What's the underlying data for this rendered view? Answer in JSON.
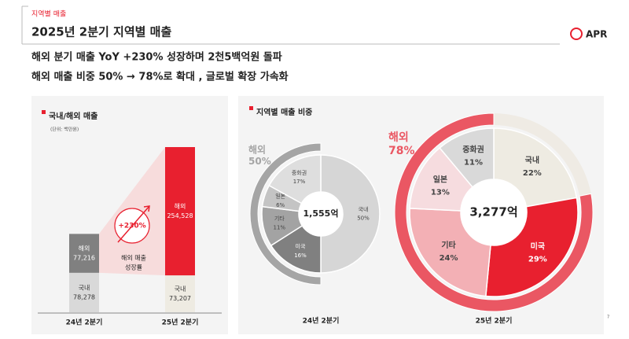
{
  "header": {
    "section": "지역별 매출",
    "title": "2025년 2분기 지역별 매출",
    "logo": "APR"
  },
  "headlines": [
    "해외 분기 매출 YoY +230% 성장하며 2천5백억원 돌파",
    "해외 매출 비중 50% → 78%로 확대 , 글로벌 확장 가속화"
  ],
  "share_panel": {
    "title": "지역별 매출 비중"
  },
  "page_number": "7",
  "chart_data": [
    {
      "type": "stacked-bar",
      "title": "국내/해외 매출",
      "subtitle": "(단위: 백만원)",
      "categories": [
        "24년 2분기",
        "25년 2분기"
      ],
      "series": [
        {
          "name": "국내",
          "colors": [
            "#d9d9d9",
            "#eeebe2"
          ],
          "values": [
            78278,
            73207
          ],
          "value_labels": [
            "78,278",
            "73,207"
          ]
        },
        {
          "name": "해외",
          "colors": [
            "#808080",
            "#e8202f"
          ],
          "values": [
            77216,
            254528
          ],
          "value_labels": [
            "77,216",
            "254,528"
          ]
        }
      ],
      "annotation": "+230%",
      "annotation_caption": [
        "해외 매출",
        "성장률"
      ]
    },
    {
      "type": "donut",
      "caption": "24년 2분기",
      "total": "1,555억",
      "categories": [
        "국내",
        "미국",
        "기타",
        "일본",
        "중화권"
      ],
      "values": [
        50,
        16,
        11,
        6,
        17
      ],
      "value_labels": [
        "50%",
        "16%",
        "11%",
        "6%",
        "17%"
      ],
      "colors": [
        "#d6d6d6",
        "#808080",
        "#a3a3a3",
        "#c4c4c4",
        "#dedede"
      ],
      "ring": {
        "name": "해외",
        "value": 50,
        "value_label": "50%",
        "color": "#a5a5a5"
      }
    },
    {
      "type": "donut",
      "caption": "25년 2분기",
      "total": "3,277억",
      "categories": [
        "국내",
        "미국",
        "기타",
        "일본",
        "중화권"
      ],
      "values": [
        22,
        29,
        24,
        13,
        11
      ],
      "value_labels": [
        "22%",
        "29%",
        "24%",
        "13%",
        "11%"
      ],
      "colors": [
        "#eeebe2",
        "#e8202f",
        "#f3b0b5",
        "#f6dcdf",
        "#d9d9d9"
      ],
      "ring": {
        "name": "해외",
        "value": 78,
        "value_label": "78%",
        "color": "#ea5763"
      }
    }
  ]
}
